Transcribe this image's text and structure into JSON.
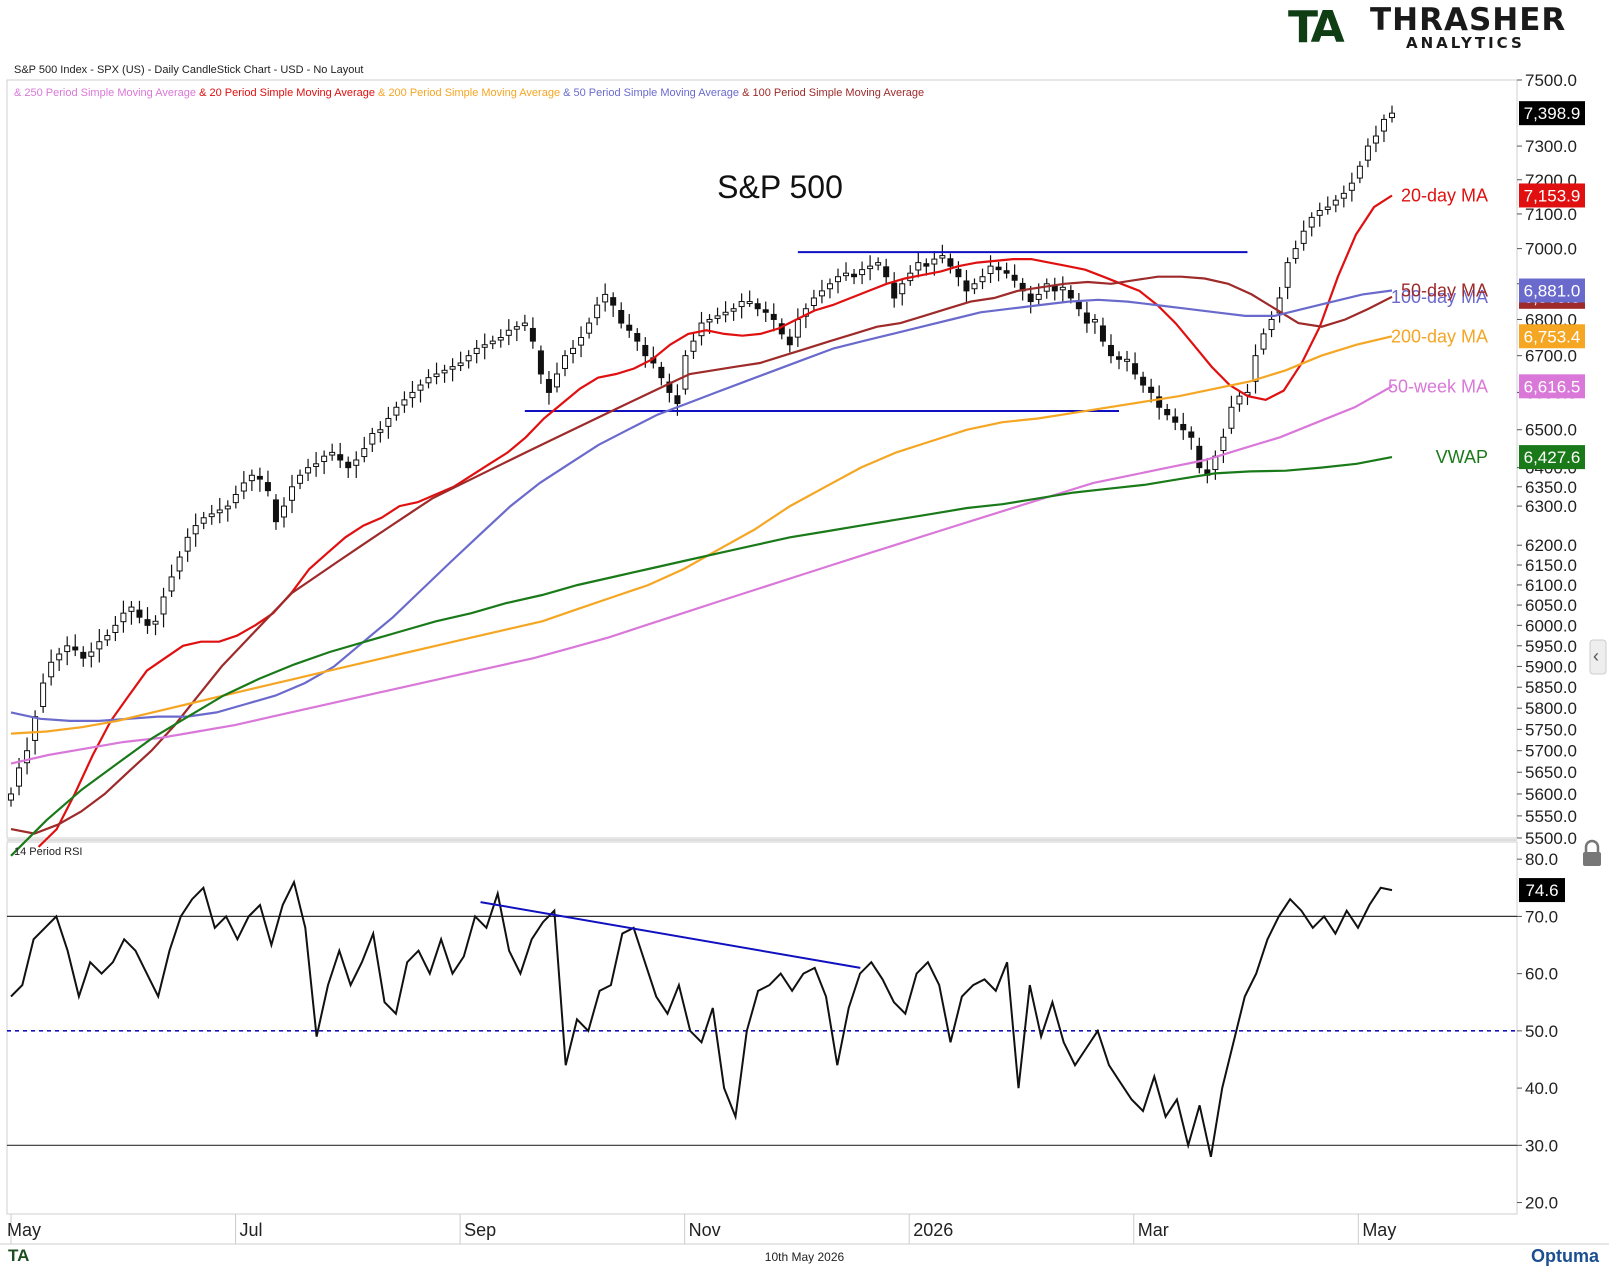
{
  "header": {
    "title_line": "S&P 500 Index - SPX (US) - Daily CandleStick Chart - USD - No Layout",
    "legend": [
      {
        "text": "& 250 Period Simple Moving Average",
        "color": "#d978d9"
      },
      {
        "text": "& 20 Period Simple Moving Average",
        "color": "#e01010"
      },
      {
        "text": "& 200 Period Simple Moving Average",
        "color": "#f5a623"
      },
      {
        "text": "& 50 Period Simple Moving Average",
        "color": "#6a6acd"
      },
      {
        "text": "& 100 Period Simple Moving Average",
        "color": "#9e2a2a"
      }
    ]
  },
  "logo": {
    "mark": "TA",
    "name": "THRASHER",
    "sub": "ANALYTICS"
  },
  "footer": {
    "date": "10th May 2026",
    "brand": "Optuma",
    "small_mark": "TA"
  },
  "chart_data": [
    {
      "type": "candlestick",
      "title": "S&P 500",
      "ylim": [
        5500,
        7500
      ],
      "y_ticks": [
        "7500.0",
        "7300.0",
        "7200.0",
        "7100.0",
        "7000.0",
        "6900.0",
        "6800.0",
        "6700.0",
        "6600.0",
        "6500.0",
        "6400.0",
        "6350.0",
        "6300.0",
        "6200.0",
        "6150.0",
        "6100.0",
        "6050.0",
        "6000.0",
        "5950.0",
        "5900.0",
        "5850.0",
        "5800.0",
        "5750.0",
        "5700.0",
        "5650.0",
        "5600.0",
        "5550.0",
        "5500.0"
      ],
      "x_labels": [
        "May",
        "Jul",
        "Sep",
        "Nov",
        "2026",
        "Mar",
        "May"
      ],
      "x_label_months": [
        0,
        2,
        4,
        6,
        8,
        10,
        12
      ],
      "months_span": 12.3,
      "closes": [
        5600,
        5660,
        5700,
        5780,
        5860,
        5910,
        5930,
        5950,
        5940,
        5920,
        5935,
        5960,
        5975,
        6000,
        6030,
        6045,
        6020,
        6000,
        6010,
        6070,
        6120,
        6170,
        6220,
        6250,
        6270,
        6280,
        6290,
        6300,
        6330,
        6360,
        6380,
        6370,
        6340,
        6260,
        6300,
        6350,
        6380,
        6400,
        6410,
        6430,
        6440,
        6420,
        6400,
        6420,
        6450,
        6490,
        6500,
        6530,
        6560,
        6580,
        6600,
        6620,
        6640,
        6650,
        6660,
        6670,
        6680,
        6700,
        6720,
        6730,
        6740,
        6750,
        6770,
        6780,
        6790,
        6740,
        6650,
        6600,
        6650,
        6700,
        6720,
        6750,
        6790,
        6840,
        6870,
        6840,
        6790,
        6770,
        6740,
        6700,
        6680,
        6640,
        6600,
        6570,
        6700,
        6740,
        6790,
        6800,
        6810,
        6820,
        6830,
        6850,
        6850,
        6830,
        6820,
        6800,
        6760,
        6730,
        6800,
        6830,
        6860,
        6880,
        6900,
        6920,
        6930,
        6920,
        6940,
        6950,
        6960,
        6920,
        6860,
        6900,
        6930,
        6960,
        6950,
        6970,
        6980,
        6950,
        6920,
        6880,
        6900,
        6920,
        6950,
        6940,
        6930,
        6910,
        6880,
        6850,
        6870,
        6900,
        6880,
        6890,
        6860,
        6830,
        6790,
        6800,
        6740,
        6700,
        6690,
        6690,
        6650,
        6620,
        6600,
        6560,
        6540,
        6520,
        6500,
        6480,
        6400,
        6380,
        6430,
        6480,
        6560,
        6590,
        6600,
        6700,
        6760,
        6800,
        6860,
        6960,
        7000,
        7050,
        7090,
        7110,
        7120,
        7140,
        7160,
        7190,
        7240,
        7300,
        7330,
        7380,
        7398.9
      ],
      "horizontal_levels": [
        {
          "value": 6990,
          "from_index": 98,
          "to_index": 154
        },
        {
          "value": 6550,
          "from_index": 64,
          "to_index": 138
        }
      ],
      "series": [
        {
          "name": "20-day MA",
          "color": "#e01010",
          "last": "7,153.9",
          "values": [
            5480,
            5520,
            5600,
            5690,
            5770,
            5830,
            5890,
            5920,
            5950,
            5960,
            5960,
            5975,
            6000,
            6030,
            6080,
            6140,
            6180,
            6220,
            6250,
            6270,
            6300,
            6310,
            6330,
            6350,
            6380,
            6410,
            6440,
            6480,
            6530,
            6570,
            6610,
            6640,
            6650,
            6665,
            6690,
            6730,
            6760,
            6770,
            6760,
            6755,
            6760,
            6775,
            6800,
            6825,
            6840,
            6860,
            6880,
            6900,
            6915,
            6925,
            6935,
            6950,
            6960,
            6965,
            6970,
            6970,
            6960,
            6950,
            6940,
            6920,
            6900,
            6880,
            6840,
            6790,
            6730,
            6670,
            6620,
            6590,
            6580,
            6605,
            6680,
            6780,
            6920,
            7040,
            7120,
            7153.9
          ]
        },
        {
          "name": "50-day MA",
          "color": "#9e2a2a",
          "last": "6,863.3",
          "values": [
            5520,
            5510,
            5530,
            5560,
            5600,
            5650,
            5700,
            5760,
            5830,
            5900,
            5960,
            6020,
            6080,
            6120,
            6160,
            6200,
            6240,
            6280,
            6320,
            6350,
            6380,
            6410,
            6440,
            6470,
            6500,
            6530,
            6560,
            6590,
            6620,
            6650,
            6660,
            6670,
            6680,
            6700,
            6720,
            6740,
            6760,
            6780,
            6790,
            6810,
            6830,
            6850,
            6860,
            6880,
            6890,
            6900,
            6905,
            6900,
            6910,
            6920,
            6920,
            6915,
            6900,
            6870,
            6830,
            6790,
            6780,
            6800,
            6830,
            6863.3
          ]
        },
        {
          "name": "100-day MA",
          "color": "#6a6acd",
          "last": "6,881.0",
          "values": [
            5790,
            5775,
            5770,
            5770,
            5775,
            5780,
            5780,
            5790,
            5810,
            5830,
            5860,
            5900,
            5960,
            6020,
            6090,
            6160,
            6230,
            6300,
            6360,
            6410,
            6460,
            6500,
            6540,
            6570,
            6600,
            6630,
            6660,
            6690,
            6720,
            6740,
            6760,
            6780,
            6800,
            6820,
            6830,
            6840,
            6850,
            6855,
            6850,
            6840,
            6830,
            6820,
            6810,
            6810,
            6830,
            6850,
            6870,
            6881.0
          ]
        },
        {
          "name": "200-day MA",
          "color": "#f5a623",
          "last": "6,753.4",
          "values": [
            5740,
            5745,
            5755,
            5770,
            5790,
            5810,
            5830,
            5850,
            5870,
            5890,
            5910,
            5930,
            5950,
            5970,
            5990,
            6010,
            6040,
            6070,
            6100,
            6140,
            6190,
            6240,
            6300,
            6350,
            6400,
            6440,
            6470,
            6500,
            6520,
            6530,
            6545,
            6560,
            6575,
            6590,
            6610,
            6630,
            6660,
            6700,
            6730,
            6753.4
          ]
        },
        {
          "name": "50-week MA",
          "color": "#d978d9",
          "last": "6,616.5",
          "values": [
            5670,
            5690,
            5705,
            5720,
            5730,
            5745,
            5760,
            5780,
            5800,
            5820,
            5840,
            5860,
            5880,
            5900,
            5920,
            5945,
            5970,
            6000,
            6030,
            6060,
            6090,
            6120,
            6150,
            6180,
            6210,
            6240,
            6270,
            6300,
            6330,
            6360,
            6380,
            6400,
            6420,
            6450,
            6480,
            6520,
            6560,
            6616.5
          ]
        },
        {
          "name": "VWAP",
          "color": "#1a7a1a",
          "last": "6,427.6",
          "values": [
            5460,
            5540,
            5610,
            5670,
            5730,
            5780,
            5830,
            5870,
            5905,
            5935,
            5960,
            5985,
            6010,
            6030,
            6055,
            6075,
            6100,
            6120,
            6140,
            6160,
            6180,
            6200,
            6220,
            6235,
            6250,
            6265,
            6280,
            6295,
            6305,
            6320,
            6335,
            6345,
            6355,
            6370,
            6385,
            6390,
            6392,
            6400,
            6410,
            6427.6
          ]
        }
      ],
      "last_price_label": "7,398.9",
      "last_price_color": "#000000"
    },
    {
      "type": "line",
      "title": "14 Period RSI",
      "ylim": [
        18,
        83
      ],
      "y_ticks": [
        "80.0",
        "70.0",
        "60.0",
        "50.0",
        "40.0",
        "30.0",
        "20.0"
      ],
      "reference_lines": [
        70,
        50,
        30
      ],
      "last_label": "74.6",
      "values": [
        56,
        58,
        66,
        68,
        70,
        64,
        56,
        62,
        60,
        62,
        66,
        64,
        60,
        56,
        64,
        70,
        73,
        75,
        68,
        70,
        66,
        70,
        72,
        65,
        72,
        76,
        68,
        49,
        58,
        64,
        58,
        62,
        67,
        55,
        53,
        62,
        64,
        60,
        66,
        60,
        63,
        70,
        68,
        74,
        64,
        60,
        66,
        69,
        71,
        44,
        52,
        50,
        57,
        58,
        67,
        68,
        62,
        56,
        53,
        58,
        50,
        48,
        54,
        40,
        35,
        50,
        57,
        58,
        60,
        57,
        60,
        61,
        56,
        44,
        54,
        60,
        62,
        59,
        55,
        53,
        60,
        62,
        58,
        48,
        56,
        58,
        59,
        57,
        62,
        40,
        58,
        49,
        55,
        48,
        44,
        47,
        50,
        44,
        41,
        38,
        36,
        42,
        35,
        38,
        30,
        37,
        28,
        40,
        48,
        56,
        60,
        66,
        70,
        73,
        71,
        68,
        70,
        67,
        71,
        68,
        72,
        75,
        74.6
      ],
      "trendline": [
        {
          "index": 0.34,
          "value": 72.5
        },
        {
          "index": 0.615,
          "value": 61
        }
      ]
    }
  ],
  "rsi_panel_label": "14 Period RSI",
  "annotations": {
    "title": "S&P 500",
    "ma_labels": [
      {
        "text": "20-day MA",
        "color": "#e01010"
      },
      {
        "text": "100-day MA",
        "color": "#6a6acd"
      },
      {
        "text": "50-day MA",
        "color": "#9e2a2a"
      },
      {
        "text": "200-day MA",
        "color": "#f5a623"
      },
      {
        "text": "50-week MA",
        "color": "#d978d9"
      },
      {
        "text": "VWAP",
        "color": "#1a7a1a"
      }
    ]
  }
}
